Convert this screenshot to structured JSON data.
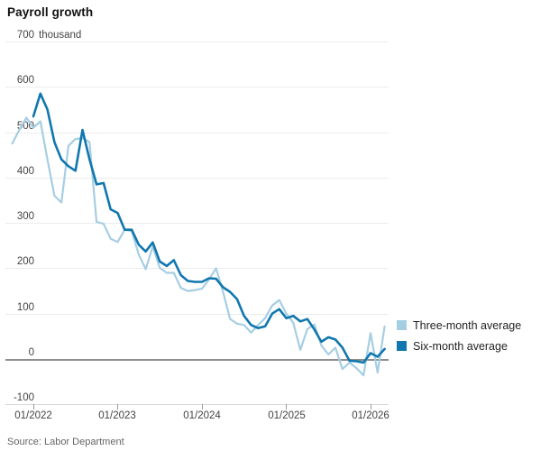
{
  "page": {
    "title": "Payroll growth"
  },
  "legend": {
    "items": [
      {
        "label": "Three-month average",
        "color": "#a6cee3"
      },
      {
        "label": "Six-month average",
        "color": "#1077ae"
      }
    ]
  },
  "chart_data": {
    "type": "line",
    "title": "Payroll growth",
    "unit_suffix": "thousand",
    "xlabel": "",
    "ylabel": "thousand",
    "ylim": [
      -100,
      700
    ],
    "grid": true,
    "legend_position": "right",
    "y_ticks": [
      700,
      600,
      500,
      400,
      300,
      200,
      100,
      0,
      -100
    ],
    "y_tick_labels": [
      "700",
      "600",
      "500",
      "400",
      "300",
      "200",
      "100",
      "0",
      "-100"
    ],
    "x_tick_labels": [
      "01/2022",
      "01/2023",
      "01/2024",
      "01/2025",
      "01/2026"
    ],
    "x_months": [
      "10/2021",
      "11/2021",
      "12/2021",
      "01/2022",
      "02/2022",
      "03/2022",
      "04/2022",
      "05/2022",
      "06/2022",
      "07/2022",
      "08/2022",
      "09/2022",
      "10/2022",
      "11/2022",
      "12/2022",
      "01/2023",
      "02/2023",
      "03/2023",
      "04/2023",
      "05/2023",
      "06/2023",
      "07/2023",
      "08/2023",
      "09/2023",
      "10/2023",
      "11/2023",
      "12/2023",
      "01/2024",
      "02/2024",
      "03/2024",
      "04/2024",
      "05/2024",
      "06/2024",
      "07/2024",
      "08/2024",
      "09/2024",
      "10/2024",
      "11/2024",
      "12/2024",
      "01/2025",
      "02/2025",
      "03/2025",
      "04/2025",
      "05/2025",
      "06/2025",
      "07/2025",
      "08/2025",
      "09/2025",
      "10/2025",
      "11/2025",
      "12/2025",
      "01/2026",
      "02/2026",
      "03/2026"
    ],
    "series": [
      {
        "name": "Three-month average",
        "color": "#a6cee3",
        "values": [
          475,
          505,
          532,
          510,
          524,
          440,
          360,
          345,
          470,
          485,
          487,
          478,
          302,
          298,
          265,
          258,
          285,
          282,
          230,
          198,
          248,
          201,
          190,
          190,
          157,
          150,
          152,
          155,
          175,
          200,
          148,
          88,
          78,
          75,
          58,
          75,
          90,
          118,
          130,
          100,
          80,
          20,
          66,
          76,
          30,
          10,
          25,
          -22,
          -8,
          -20,
          -36,
          57,
          -30,
          72
        ]
      },
      {
        "name": "Six-month average",
        "color": "#1077ae",
        "values": [
          null,
          null,
          null,
          535,
          585,
          550,
          478,
          440,
          425,
          415,
          505,
          440,
          385,
          388,
          330,
          322,
          285,
          285,
          252,
          237,
          257,
          215,
          205,
          218,
          185,
          172,
          170,
          170,
          178,
          177,
          158,
          148,
          132,
          95,
          75,
          68,
          72,
          100,
          110,
          90,
          95,
          83,
          88,
          65,
          38,
          48,
          43,
          25,
          -4,
          -5,
          -8,
          13,
          5,
          22
        ]
      }
    ],
    "source": "Source: Labor Department"
  }
}
